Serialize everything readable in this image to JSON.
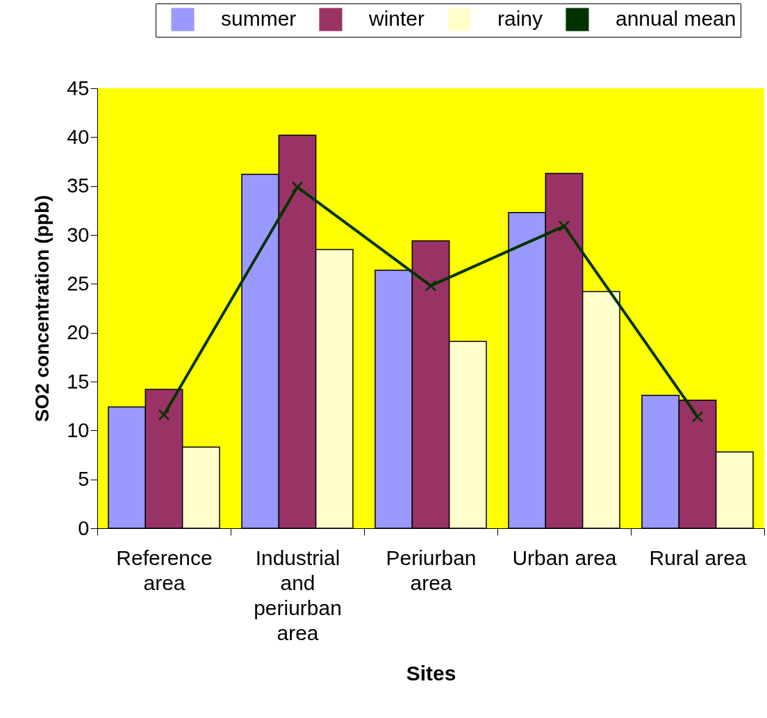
{
  "chart_data": {
    "type": "bar",
    "xlabel": "Sites",
    "ylabel": "SO2 concentration (ppb)",
    "categories": [
      "Reference area",
      "Industrial and periurban area",
      "Periurban area",
      "Urban area",
      "Rural area"
    ],
    "series": [
      {
        "name": "summer",
        "type": "bar",
        "color": "#9999ff",
        "values": [
          12.4,
          36.2,
          26.4,
          32.3,
          13.6
        ]
      },
      {
        "name": "winter",
        "type": "bar",
        "color": "#993366",
        "values": [
          14.2,
          40.2,
          29.4,
          36.3,
          13.1
        ]
      },
      {
        "name": "rainy",
        "type": "bar",
        "color": "#ffffcc",
        "values": [
          8.3,
          28.5,
          19.1,
          24.2,
          7.8
        ]
      },
      {
        "name": "annual mean",
        "type": "line",
        "color": "#003300",
        "marker": "cross",
        "values": [
          11.6,
          34.9,
          24.8,
          30.9,
          11.4
        ]
      }
    ],
    "ylim": [
      0,
      45
    ],
    "yticks": [
      0,
      5,
      10,
      15,
      20,
      25,
      30,
      35,
      40,
      45
    ],
    "grid": false,
    "legend": "top right"
  }
}
